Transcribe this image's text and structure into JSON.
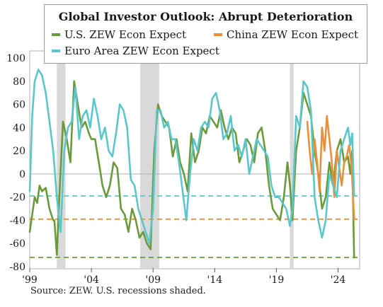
{
  "colors": {
    "us": "#6b9a3a",
    "china": "#e8913a",
    "euro": "#5cc7cb",
    "recession": "#d9d9d9",
    "zero_line": "#b0b0b0"
  },
  "source_note": "Source: ZEW. U.S. recessions shaded.",
  "chart_data": {
    "type": "line",
    "title": "Global Investor Outlook: Abrupt Deterioration",
    "xlabel": "",
    "ylabel": "",
    "xlim": [
      1999,
      2025.75
    ],
    "ylim": [
      -80,
      100
    ],
    "y_ticks": [
      100,
      80,
      60,
      40,
      20,
      0,
      -20,
      -40,
      -60,
      -80
    ],
    "x_ticks": [
      {
        "value": 1999,
        "label": "'99"
      },
      {
        "value": 2004,
        "label": "'04"
      },
      {
        "value": 2009,
        "label": "'09"
      },
      {
        "value": 2014,
        "label": "'14"
      },
      {
        "value": 2019,
        "label": "'19"
      },
      {
        "value": 2024,
        "label": "'24"
      }
    ],
    "legend": "top",
    "recessions": [
      [
        2001.2,
        2001.9
      ],
      [
        2007.95,
        2009.5
      ],
      [
        2020.1,
        2020.4
      ]
    ],
    "reference_lines": [
      {
        "y": -19,
        "series": "Euro Area ZEW Econ Expect"
      },
      {
        "y": -39,
        "series": "China ZEW Econ Expect"
      },
      {
        "y": -72,
        "series": "U.S. ZEW Econ Expect"
      }
    ],
    "series": [
      {
        "name": "U.S. ZEW Econ Expect",
        "key": "us",
        "x": [
          1999.0,
          1999.2,
          1999.4,
          1999.6,
          1999.8,
          2000.0,
          2000.3,
          2000.6,
          2000.9,
          2001.0,
          2001.2,
          2001.4,
          2001.7,
          2002.0,
          2002.3,
          2002.6,
          2002.9,
          2003.2,
          2003.5,
          2003.8,
          2004.0,
          2004.3,
          2004.6,
          2004.9,
          2005.2,
          2005.5,
          2005.8,
          2006.1,
          2006.4,
          2006.7,
          2007.0,
          2007.3,
          2007.6,
          2007.9,
          2008.2,
          2008.5,
          2008.8,
          2009.1,
          2009.4,
          2009.7,
          2010.0,
          2010.3,
          2010.6,
          2010.9,
          2011.2,
          2011.5,
          2011.8,
          2012.1,
          2012.4,
          2012.7,
          2013.0,
          2013.3,
          2013.6,
          2013.9,
          2014.2,
          2014.5,
          2014.8,
          2015.1,
          2015.4,
          2015.7,
          2016.0,
          2016.3,
          2016.6,
          2016.9,
          2017.2,
          2017.5,
          2017.8,
          2018.1,
          2018.4,
          2018.7,
          2019.0,
          2019.3,
          2019.6,
          2019.9,
          2020.1,
          2020.3,
          2020.6,
          2020.9,
          2021.2,
          2021.5,
          2021.8,
          2022.1,
          2022.4,
          2022.7,
          2023.0,
          2023.3,
          2023.6,
          2023.9,
          2024.2,
          2024.5,
          2024.8,
          2025.0,
          2025.15,
          2025.3
        ],
        "values": [
          -50,
          -35,
          -20,
          -25,
          -10,
          -15,
          -12,
          -30,
          -40,
          -40,
          -70,
          -20,
          45,
          30,
          10,
          80,
          60,
          40,
          45,
          35,
          30,
          30,
          10,
          -10,
          -20,
          -10,
          10,
          5,
          -30,
          -35,
          -50,
          -30,
          -40,
          -55,
          -50,
          -60,
          -65,
          20,
          60,
          50,
          45,
          40,
          15,
          30,
          10,
          0,
          -15,
          35,
          10,
          20,
          40,
          35,
          50,
          45,
          40,
          55,
          40,
          30,
          40,
          35,
          10,
          20,
          30,
          25,
          10,
          35,
          40,
          20,
          -10,
          -30,
          -35,
          -40,
          -20,
          10,
          -10,
          -40,
          20,
          40,
          70,
          60,
          50,
          20,
          0,
          -30,
          -20,
          10,
          -10,
          20,
          30,
          10,
          15,
          0,
          20,
          -72
        ]
      },
      {
        "name": "China ZEW Econ Expect",
        "key": "china",
        "x": [
          2021.5,
          2021.7,
          2021.9,
          2022.1,
          2022.3,
          2022.5,
          2022.7,
          2022.9,
          2023.1,
          2023.3,
          2023.5,
          2023.7,
          2023.9,
          2024.1,
          2024.3,
          2024.5,
          2024.7,
          2024.9,
          2025.1,
          2025.3
        ],
        "values": [
          45,
          20,
          0,
          30,
          10,
          -15,
          40,
          20,
          50,
          30,
          10,
          -20,
          20,
          5,
          -10,
          10,
          15,
          25,
          5,
          -39
        ]
      },
      {
        "name": "Euro Area ZEW Econ Expect",
        "key": "euro",
        "x": [
          1999.0,
          1999.2,
          1999.4,
          1999.7,
          2000.0,
          2000.3,
          2000.6,
          2000.9,
          2001.2,
          2001.5,
          2001.8,
          2002.1,
          2002.4,
          2002.7,
          2003.0,
          2003.3,
          2003.6,
          2003.9,
          2004.2,
          2004.5,
          2004.8,
          2005.1,
          2005.4,
          2005.7,
          2006.0,
          2006.3,
          2006.6,
          2006.9,
          2007.2,
          2007.5,
          2007.8,
          2008.1,
          2008.4,
          2008.7,
          2009.0,
          2009.3,
          2009.6,
          2009.9,
          2010.2,
          2010.5,
          2010.8,
          2011.1,
          2011.4,
          2011.7,
          2012.0,
          2012.3,
          2012.6,
          2012.9,
          2013.2,
          2013.5,
          2013.8,
          2014.1,
          2014.4,
          2014.7,
          2015.0,
          2015.3,
          2015.6,
          2015.9,
          2016.2,
          2016.5,
          2016.8,
          2017.1,
          2017.4,
          2017.7,
          2018.0,
          2018.3,
          2018.6,
          2018.9,
          2019.2,
          2019.5,
          2019.8,
          2020.1,
          2020.3,
          2020.6,
          2020.9,
          2021.2,
          2021.5,
          2021.8,
          2022.1,
          2022.4,
          2022.7,
          2023.0,
          2023.3,
          2023.6,
          2023.9,
          2024.2,
          2024.5,
          2024.8,
          2025.0,
          2025.15,
          2025.3
        ],
        "values": [
          -15,
          50,
          80,
          90,
          85,
          70,
          45,
          20,
          -20,
          -50,
          20,
          40,
          45,
          75,
          30,
          50,
          55,
          40,
          65,
          50,
          30,
          40,
          20,
          15,
          35,
          60,
          55,
          40,
          -5,
          -10,
          -30,
          -40,
          -50,
          -60,
          -30,
          55,
          55,
          40,
          45,
          30,
          30,
          10,
          -15,
          -40,
          0,
          30,
          20,
          40,
          45,
          40,
          65,
          70,
          55,
          30,
          35,
          50,
          20,
          25,
          15,
          30,
          0,
          15,
          30,
          25,
          20,
          15,
          -10,
          -20,
          -20,
          -25,
          -30,
          -45,
          -30,
          50,
          40,
          80,
          75,
          55,
          -20,
          -40,
          -55,
          -40,
          0,
          -10,
          -20,
          20,
          30,
          40,
          25,
          35,
          -19
        ]
      }
    ]
  }
}
